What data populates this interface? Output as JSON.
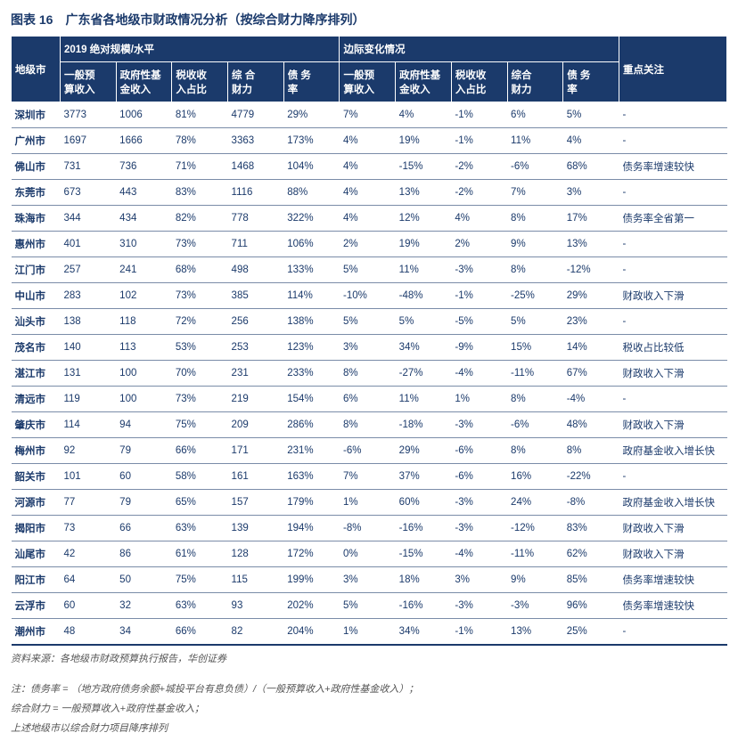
{
  "title": "图表 16　广东省各地级市财政情况分析（按综合财力降序排列）",
  "header": {
    "city": "地级市",
    "group1": "2019 绝对规模/水平",
    "group2": "边际变化情况",
    "focus": "重点关注",
    "cols_abs": [
      "一般预\n算收入",
      "政府性基\n金收入",
      "税收收\n入占比",
      "综 合\n财力",
      "债 务\n率"
    ],
    "cols_chg": [
      "一般预\n算收入",
      "政府性基\n金收入",
      "税收收\n入占比",
      "综合\n财力",
      "债 务\n率"
    ]
  },
  "rows": [
    {
      "city": "深圳市",
      "a": [
        "3773",
        "1006",
        "81%",
        "4779",
        "29%"
      ],
      "c": [
        "7%",
        "4%",
        "-1%",
        "6%",
        "5%"
      ],
      "f": "-"
    },
    {
      "city": "广州市",
      "a": [
        "1697",
        "1666",
        "78%",
        "3363",
        "173%"
      ],
      "c": [
        "4%",
        "19%",
        "-1%",
        "11%",
        "4%"
      ],
      "f": "-"
    },
    {
      "city": "佛山市",
      "a": [
        "731",
        "736",
        "71%",
        "1468",
        "104%"
      ],
      "c": [
        "4%",
        "-15%",
        "-2%",
        "-6%",
        "68%"
      ],
      "f": "债务率增速较快"
    },
    {
      "city": "东莞市",
      "a": [
        "673",
        "443",
        "83%",
        "1116",
        "88%"
      ],
      "c": [
        "4%",
        "13%",
        "-2%",
        "7%",
        "3%"
      ],
      "f": "-"
    },
    {
      "city": "珠海市",
      "a": [
        "344",
        "434",
        "82%",
        "778",
        "322%"
      ],
      "c": [
        "4%",
        "12%",
        "4%",
        "8%",
        "17%"
      ],
      "f": "债务率全省第一"
    },
    {
      "city": "惠州市",
      "a": [
        "401",
        "310",
        "73%",
        "711",
        "106%"
      ],
      "c": [
        "2%",
        "19%",
        "2%",
        "9%",
        "13%"
      ],
      "f": "-"
    },
    {
      "city": "江门市",
      "a": [
        "257",
        "241",
        "68%",
        "498",
        "133%"
      ],
      "c": [
        "5%",
        "11%",
        "-3%",
        "8%",
        "-12%"
      ],
      "f": "-"
    },
    {
      "city": "中山市",
      "a": [
        "283",
        "102",
        "73%",
        "385",
        "114%"
      ],
      "c": [
        "-10%",
        "-48%",
        "-1%",
        "-25%",
        "29%"
      ],
      "f": "财政收入下滑"
    },
    {
      "city": "汕头市",
      "a": [
        "138",
        "118",
        "72%",
        "256",
        "138%"
      ],
      "c": [
        "5%",
        "5%",
        "-5%",
        "5%",
        "23%"
      ],
      "f": "-"
    },
    {
      "city": "茂名市",
      "a": [
        "140",
        "113",
        "53%",
        "253",
        "123%"
      ],
      "c": [
        "3%",
        "34%",
        "-9%",
        "15%",
        "14%"
      ],
      "f": "税收占比较低"
    },
    {
      "city": "湛江市",
      "a": [
        "131",
        "100",
        "70%",
        "231",
        "233%"
      ],
      "c": [
        "8%",
        "-27%",
        "-4%",
        "-11%",
        "67%"
      ],
      "f": "财政收入下滑"
    },
    {
      "city": "清远市",
      "a": [
        "119",
        "100",
        "73%",
        "219",
        "154%"
      ],
      "c": [
        "6%",
        "11%",
        "1%",
        "8%",
        "-4%"
      ],
      "f": "-"
    },
    {
      "city": "肇庆市",
      "a": [
        "114",
        "94",
        "75%",
        "209",
        "286%"
      ],
      "c": [
        "8%",
        "-18%",
        "-3%",
        "-6%",
        "48%"
      ],
      "f": "财政收入下滑"
    },
    {
      "city": "梅州市",
      "a": [
        "92",
        "79",
        "66%",
        "171",
        "231%"
      ],
      "c": [
        "-6%",
        "29%",
        "-6%",
        "8%",
        "8%"
      ],
      "f": "政府基金收入增长快"
    },
    {
      "city": "韶关市",
      "a": [
        "101",
        "60",
        "58%",
        "161",
        "163%"
      ],
      "c": [
        "7%",
        "37%",
        "-6%",
        "16%",
        "-22%"
      ],
      "f": "-"
    },
    {
      "city": "河源市",
      "a": [
        "77",
        "79",
        "65%",
        "157",
        "179%"
      ],
      "c": [
        "1%",
        "60%",
        "-3%",
        "24%",
        "-8%"
      ],
      "f": "政府基金收入增长快"
    },
    {
      "city": "揭阳市",
      "a": [
        "73",
        "66",
        "63%",
        "139",
        "194%"
      ],
      "c": [
        "-8%",
        "-16%",
        "-3%",
        "-12%",
        "83%"
      ],
      "f": "财政收入下滑"
    },
    {
      "city": "汕尾市",
      "a": [
        "42",
        "86",
        "61%",
        "128",
        "172%"
      ],
      "c": [
        "0%",
        "-15%",
        "-4%",
        "-11%",
        "62%"
      ],
      "f": "财政收入下滑"
    },
    {
      "city": "阳江市",
      "a": [
        "64",
        "50",
        "75%",
        "115",
        "199%"
      ],
      "c": [
        "3%",
        "18%",
        "3%",
        "9%",
        "85%"
      ],
      "f": "债务率增速较快"
    },
    {
      "city": "云浮市",
      "a": [
        "60",
        "32",
        "63%",
        "93",
        "202%"
      ],
      "c": [
        "5%",
        "-16%",
        "-3%",
        "-3%",
        "96%"
      ],
      "f": "债务率增速较快"
    },
    {
      "city": "潮州市",
      "a": [
        "48",
        "34",
        "66%",
        "82",
        "204%"
      ],
      "c": [
        "1%",
        "34%",
        "-1%",
        "13%",
        "25%"
      ],
      "f": "-"
    }
  ],
  "source": "资料来源：各地级市财政预算执行报告，华创证券",
  "notes": [
    "注：债务率 = （地方政府债务余额+城投平台有息负债）/（一般预算收入+政府性基金收入）；",
    "综合财力 = 一般预算收入+政府性基金收入；",
    "上述地级市以综合财力项目降序排列"
  ],
  "style": {
    "header_bg": "#1b3a6b",
    "header_fg": "#ffffff",
    "cell_fg": "#1b3a6b",
    "row_border": "#7a8ca8",
    "title_fontsize": 14,
    "cell_fontsize": 11.5
  }
}
